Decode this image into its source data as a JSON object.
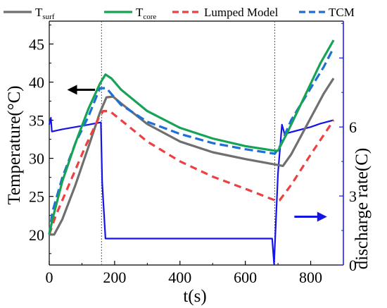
{
  "chart_data": {
    "type": "line",
    "title": "",
    "xlabel": "t(s)",
    "ylabel_left": "Temperature(°C)",
    "ylabel_right": "discharge rate(C)",
    "xlim": [
      0,
      900
    ],
    "ylim_left": [
      16,
      48
    ],
    "ylim_right": [
      0,
      10.6
    ],
    "x_ticks": [
      0,
      200,
      400,
      600,
      800
    ],
    "y_ticks_left": [
      20,
      25,
      30,
      35,
      40,
      45
    ],
    "y_ticks_right": [
      0,
      3,
      6
    ],
    "vertical_lines_x": [
      160,
      690
    ],
    "grid": false,
    "legend": {
      "placement": "top",
      "entries": [
        {
          "series": "tsurf",
          "main": "T",
          "sub": "surf",
          "style": "solid"
        },
        {
          "series": "tcore",
          "main": "T",
          "sub": "core",
          "style": "solid"
        },
        {
          "series": "lumped",
          "main": "Lumped Model",
          "sub": "",
          "style": "dashed"
        },
        {
          "series": "tcm",
          "main": "TCM",
          "sub": "",
          "style": "dashed"
        }
      ]
    },
    "series": [
      {
        "id": "tsurf",
        "name": "Tsurf",
        "axis": "left",
        "color": "#6f6f6f",
        "dash": "none",
        "points": [
          [
            0,
            20.0
          ],
          [
            15,
            20.0
          ],
          [
            40,
            22.0
          ],
          [
            80,
            26.5
          ],
          [
            120,
            31.5
          ],
          [
            155,
            36.0
          ],
          [
            175,
            38.0
          ],
          [
            195,
            38.1
          ],
          [
            220,
            37.2
          ],
          [
            300,
            34.5
          ],
          [
            400,
            32.2
          ],
          [
            500,
            30.8
          ],
          [
            600,
            29.9
          ],
          [
            690,
            29.2
          ],
          [
            715,
            29.0
          ],
          [
            740,
            30.5
          ],
          [
            790,
            34.5
          ],
          [
            840,
            38.5
          ],
          [
            870,
            40.5
          ]
        ]
      },
      {
        "id": "tcore",
        "name": "Tcore",
        "axis": "left",
        "color": "#17a355",
        "dash": "none",
        "points": [
          [
            0,
            20.0
          ],
          [
            10,
            22.0
          ],
          [
            40,
            27.0
          ],
          [
            80,
            32.0
          ],
          [
            120,
            36.5
          ],
          [
            155,
            39.8
          ],
          [
            172,
            41.0
          ],
          [
            190,
            40.5
          ],
          [
            220,
            39.0
          ],
          [
            300,
            36.2
          ],
          [
            400,
            34.0
          ],
          [
            500,
            32.6
          ],
          [
            600,
            31.6
          ],
          [
            690,
            31.0
          ],
          [
            700,
            31.0
          ],
          [
            730,
            33.5
          ],
          [
            780,
            38.0
          ],
          [
            830,
            42.5
          ],
          [
            870,
            45.5
          ]
        ]
      },
      {
        "id": "lumped",
        "name": "Lumped Model",
        "axis": "left",
        "color": "#ee4040",
        "dash": "10,7",
        "points": [
          [
            0,
            20.0
          ],
          [
            20,
            22.5
          ],
          [
            60,
            26.5
          ],
          [
            110,
            31.5
          ],
          [
            150,
            35.2
          ],
          [
            165,
            36.2
          ],
          [
            185,
            36.2
          ],
          [
            220,
            35.0
          ],
          [
            300,
            32.2
          ],
          [
            400,
            29.6
          ],
          [
            500,
            27.6
          ],
          [
            600,
            26.0
          ],
          [
            690,
            24.5
          ],
          [
            705,
            24.5
          ],
          [
            740,
            26.5
          ],
          [
            800,
            30.5
          ],
          [
            870,
            35.0
          ]
        ]
      },
      {
        "id": "tcm",
        "name": "TCM",
        "axis": "left",
        "color": "#1e6fd6",
        "dash": "12,6",
        "points": [
          [
            0,
            20.0
          ],
          [
            10,
            23.0
          ],
          [
            40,
            27.5
          ],
          [
            80,
            32.0
          ],
          [
            120,
            35.5
          ],
          [
            155,
            39.2
          ],
          [
            175,
            39.2
          ],
          [
            195,
            38.2
          ],
          [
            220,
            37.0
          ],
          [
            300,
            34.8
          ],
          [
            400,
            33.2
          ],
          [
            500,
            32.0
          ],
          [
            600,
            31.2
          ],
          [
            690,
            30.6
          ],
          [
            705,
            31.5
          ],
          [
            740,
            35.0
          ],
          [
            790,
            38.5
          ],
          [
            840,
            42.0
          ],
          [
            870,
            44.5
          ]
        ]
      },
      {
        "id": "rate",
        "name": "discharge rate",
        "axis": "right",
        "color": "#1414e6",
        "dash": "none",
        "points": [
          [
            0,
            6.1
          ],
          [
            5,
            6.4
          ],
          [
            8,
            5.8
          ],
          [
            40,
            5.9
          ],
          [
            80,
            6.0
          ],
          [
            120,
            6.1
          ],
          [
            158,
            6.2
          ],
          [
            162,
            3.6
          ],
          [
            172,
            1.15
          ],
          [
            400,
            1.15
          ],
          [
            600,
            1.15
          ],
          [
            682,
            1.15
          ],
          [
            688,
            0.05
          ],
          [
            700,
            4.0
          ],
          [
            712,
            6.1
          ],
          [
            720,
            5.7
          ],
          [
            760,
            5.85
          ],
          [
            800,
            6.0
          ],
          [
            830,
            6.15
          ],
          [
            870,
            6.3
          ]
        ]
      }
    ],
    "annotations": [
      {
        "type": "arrow",
        "direction": "left",
        "color": "#000000",
        "axis": "left",
        "x_from": 140,
        "x_to": 55,
        "y": 39.0
      },
      {
        "type": "arrow",
        "direction": "right",
        "color": "#1414e6",
        "axis": "right",
        "x_from": 750,
        "x_to": 850,
        "y": 2.1
      }
    ]
  }
}
